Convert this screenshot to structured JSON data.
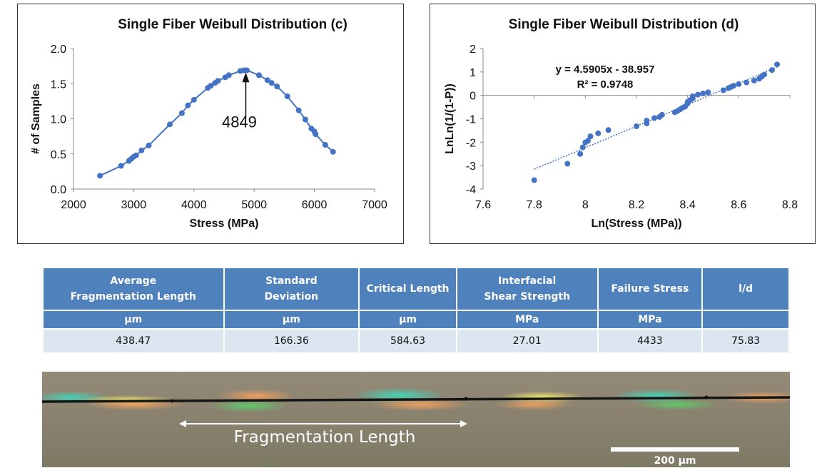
{
  "charts": {
    "c": {
      "title": "Single Fiber Weibull Distribution (c)",
      "xlabel": "Stress (MPa)",
      "ylabel": "# of Samples",
      "annotation": "4849"
    },
    "d": {
      "title": "Single Fiber Weibull Distribution (d)",
      "xlabel": "Ln(Stress (MPa))",
      "ylabel": "LnLn(1/(1-P))",
      "equation": "y = 4.5905x - 38.957",
      "r2": "R² = 0.9748"
    }
  },
  "chart_data": [
    {
      "type": "line",
      "title": "Single Fiber Weibull Distribution (c)",
      "xlabel": "Stress (MPa)",
      "ylabel": "# of Samples",
      "xlim": [
        2000,
        7000
      ],
      "ylim": [
        0,
        2.0
      ],
      "xticks": [
        "2000",
        "3000",
        "4000",
        "5000",
        "6000",
        "7000"
      ],
      "yticks": [
        "0.0",
        "0.5",
        "1.0",
        "1.5",
        "2.0"
      ],
      "color": "#4472c4",
      "annotation": {
        "text": "4849",
        "x": 4849,
        "y": 1.7
      },
      "x": [
        2440,
        2790,
        2920,
        2960,
        3000,
        3040,
        3130,
        3250,
        3600,
        3800,
        3900,
        4000,
        4230,
        4280,
        4350,
        4400,
        4520,
        4580,
        4770,
        4830,
        4880,
        5080,
        5220,
        5290,
        5380,
        5550,
        5740,
        5850,
        5950,
        6000,
        6020,
        6180,
        6310
      ],
      "y": [
        0.19,
        0.33,
        0.4,
        0.43,
        0.46,
        0.48,
        0.55,
        0.62,
        0.92,
        1.08,
        1.19,
        1.27,
        1.44,
        1.47,
        1.51,
        1.54,
        1.59,
        1.62,
        1.68,
        1.69,
        1.69,
        1.62,
        1.55,
        1.51,
        1.46,
        1.32,
        1.12,
        0.99,
        0.86,
        0.82,
        0.78,
        0.63,
        0.53
      ]
    },
    {
      "type": "scatter",
      "title": "Single Fiber Weibull Distribution (d)",
      "xlabel": "Ln(Stress (MPa))",
      "ylabel": "LnLn(1/(1-P))",
      "xlim": [
        7.6,
        8.8
      ],
      "ylim": [
        -4,
        2
      ],
      "xticks": [
        "7.6",
        "7.8",
        "8",
        "8.2",
        "8.4",
        "8.6",
        "8.8"
      ],
      "yticks": [
        "-4",
        "-3",
        "-2",
        "-1",
        "0",
        "1",
        "2"
      ],
      "color": "#4472c4",
      "trendline": {
        "slope": 4.5905,
        "intercept": -38.957,
        "x_range": [
          7.8,
          8.75
        ]
      },
      "x": [
        7.8,
        7.93,
        7.98,
        7.99,
        8.0,
        8.01,
        8.02,
        8.05,
        8.09,
        8.2,
        8.24,
        8.24,
        8.27,
        8.29,
        8.3,
        8.35,
        8.36,
        8.37,
        8.38,
        8.39,
        8.4,
        8.4,
        8.41,
        8.42,
        8.42,
        8.44,
        8.46,
        8.48,
        8.54,
        8.56,
        8.57,
        8.58,
        8.6,
        8.63,
        8.66,
        8.68,
        8.69,
        8.7,
        8.73,
        8.75
      ],
      "y": [
        -3.62,
        -2.92,
        -2.5,
        -2.22,
        -2.01,
        -1.94,
        -1.75,
        -1.62,
        -1.48,
        -1.32,
        -1.2,
        -1.08,
        -0.97,
        -0.92,
        -0.83,
        -0.72,
        -0.67,
        -0.6,
        -0.53,
        -0.48,
        -0.35,
        -0.28,
        -0.2,
        -0.13,
        -0.04,
        0.03,
        0.08,
        0.13,
        0.22,
        0.31,
        0.36,
        0.41,
        0.48,
        0.55,
        0.63,
        0.71,
        0.8,
        0.89,
        1.08,
        1.32
      ]
    }
  ],
  "table": {
    "headers": [
      "Average\nFragmentation Length",
      "Standard\nDeviation",
      "Critical Length",
      "Interfacial\nShear Strength",
      "Failure Stress",
      "l/d"
    ],
    "units": [
      "µm",
      "µm",
      "µm",
      "MPa",
      "MPa",
      ""
    ],
    "values": [
      "438.47",
      "166.36",
      "584.63",
      "27.01",
      "4433",
      "75.83"
    ]
  },
  "micrograph": {
    "label": "Fragmentation Length",
    "scalebar": "200 µm"
  }
}
